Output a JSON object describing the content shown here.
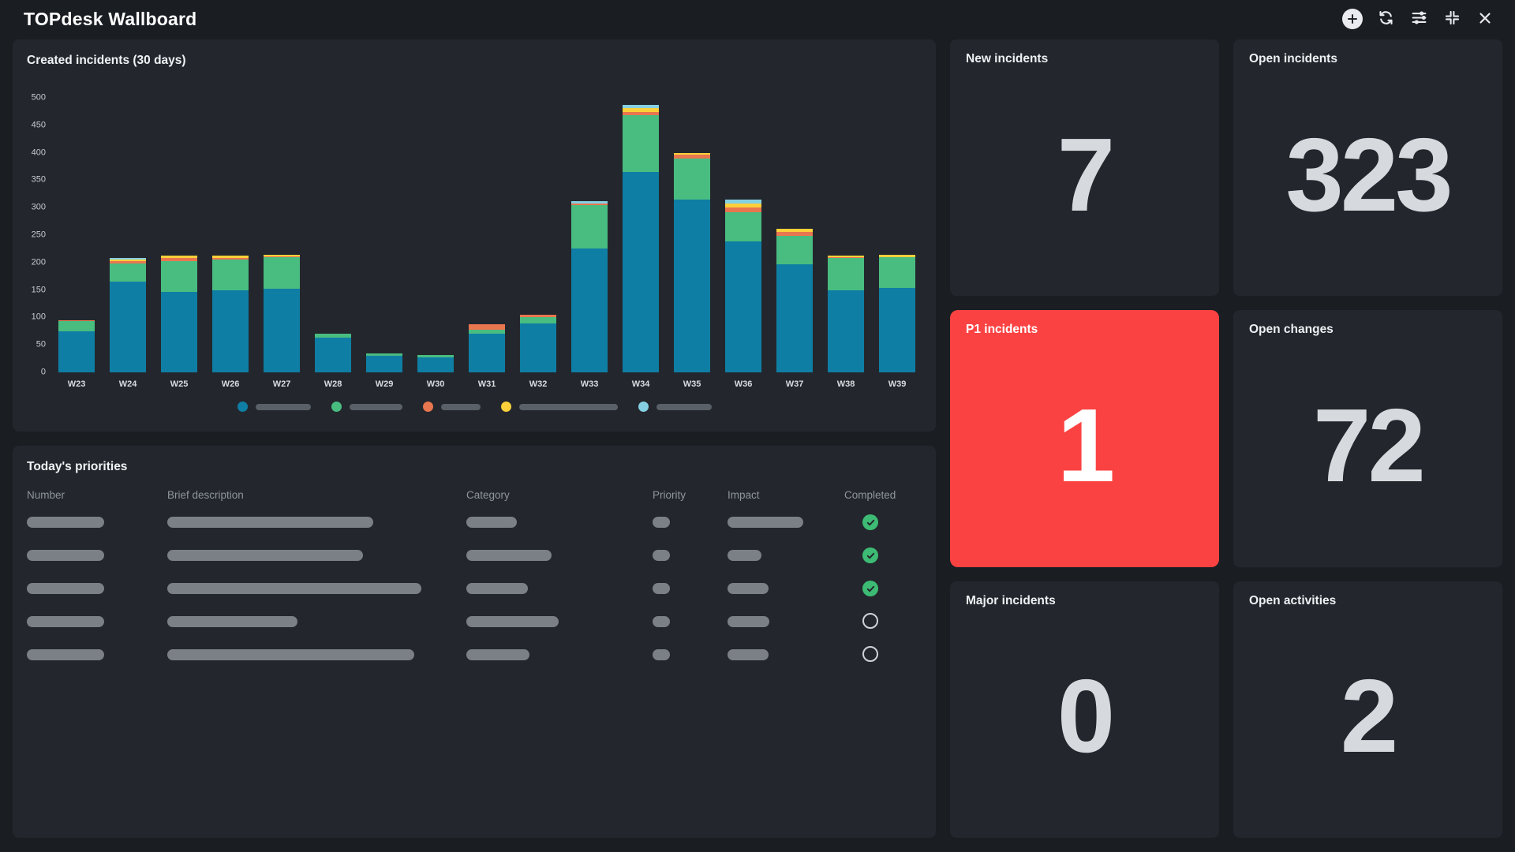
{
  "colors": {
    "page_bg": "#1a1d22",
    "panel_bg": "#23272d",
    "alert_red": "#fb4242",
    "big_number": "#d6dade",
    "placeholder_gray": "#7b8086",
    "legend_pill_gray": "#5a6067",
    "check_green": "#3dbb74",
    "series_teal": "#0f7ea4",
    "series_green": "#49bc80",
    "series_salmon": "#e8764f",
    "series_yellow": "#fcd03a",
    "series_lightblue": "#85d0e2"
  },
  "header": {
    "title": "TOPdesk Wallboard",
    "icons": [
      "add-icon",
      "refresh-icon",
      "sliders-icon",
      "exit-fullscreen-icon",
      "close-icon"
    ]
  },
  "chart_panel": {
    "title": "Created incidents (30 days)"
  },
  "chart_data": {
    "type": "bar",
    "stacked": true,
    "title": "Created incidents (30 days)",
    "xlabel": "",
    "ylabel": "",
    "ylim": [
      0,
      500
    ],
    "ytick_step": 50,
    "grid": false,
    "legend_position": "bottom-center",
    "categories": [
      "W23",
      "W24",
      "W25",
      "W26",
      "W27",
      "W28",
      "W29",
      "W30",
      "W31",
      "W32",
      "W33",
      "W34",
      "W35",
      "W36",
      "W37",
      "W38",
      "W39"
    ],
    "series": [
      {
        "name": "series-teal",
        "color": "#0f7ea4",
        "values": [
          75,
          165,
          146,
          150,
          153,
          64,
          30,
          27,
          70,
          89,
          226,
          365,
          315,
          238,
          197,
          150,
          154
        ]
      },
      {
        "name": "series-green",
        "color": "#49bc80",
        "values": [
          18,
          33,
          57,
          56,
          57,
          7,
          4,
          4,
          8,
          12,
          79,
          103,
          75,
          54,
          52,
          58,
          56
        ]
      },
      {
        "name": "series-salmon",
        "color": "#e8764f",
        "values": [
          2,
          4,
          5,
          3,
          1,
          0,
          0,
          0,
          9,
          4,
          3,
          6,
          6,
          8,
          7,
          2,
          0
        ]
      },
      {
        "name": "series-yellow",
        "color": "#fcd03a",
        "values": [
          0,
          3,
          4,
          3,
          3,
          0,
          0,
          0,
          0,
          0,
          0,
          7,
          4,
          7,
          5,
          2,
          4
        ]
      },
      {
        "name": "series-lightblue",
        "color": "#85d0e2",
        "values": [
          0,
          3,
          0,
          0,
          0,
          0,
          0,
          0,
          0,
          0,
          4,
          6,
          0,
          8,
          0,
          0,
          0
        ]
      }
    ],
    "legend_items": [
      {
        "series": "series-teal",
        "color": "#0f7ea4",
        "label_redacted": true,
        "pill_width": 70
      },
      {
        "series": "series-green",
        "color": "#49bc80",
        "label_redacted": true,
        "pill_width": 67
      },
      {
        "series": "series-salmon",
        "color": "#e8764f",
        "label_redacted": true,
        "pill_width": 50
      },
      {
        "series": "series-yellow",
        "color": "#fcd03a",
        "label_redacted": true,
        "pill_width": 125
      },
      {
        "series": "series-lightblue",
        "color": "#85d0e2",
        "label_redacted": true,
        "pill_width": 70
      }
    ]
  },
  "priorities": {
    "title": "Today's priorities",
    "columns": [
      "Number",
      "Brief description",
      "Category",
      "Priority",
      "Impact",
      "Completed"
    ],
    "rows": [
      {
        "number_w": 98,
        "brief_w": 261,
        "category_w": 64,
        "priority_w": 22,
        "impact_w": 96,
        "completed": true
      },
      {
        "number_w": 98,
        "brief_w": 248,
        "category_w": 108,
        "priority_w": 22,
        "impact_w": 43,
        "completed": true
      },
      {
        "number_w": 98,
        "brief_w": 322,
        "category_w": 78,
        "priority_w": 22,
        "impact_w": 52,
        "completed": true
      },
      {
        "number_w": 98,
        "brief_w": 165,
        "category_w": 117,
        "priority_w": 22,
        "impact_w": 53,
        "completed": false
      },
      {
        "number_w": 98,
        "brief_w": 313,
        "category_w": 80,
        "priority_w": 22,
        "impact_w": 52,
        "completed": false
      }
    ]
  },
  "tiles": [
    {
      "title": "New incidents",
      "value": "7",
      "variant": "default"
    },
    {
      "title": "Open incidents",
      "value": "323",
      "variant": "default"
    },
    {
      "title": "P1 incidents",
      "value": "1",
      "variant": "alert"
    },
    {
      "title": "Open changes",
      "value": "72",
      "variant": "default"
    },
    {
      "title": "Major incidents",
      "value": "0",
      "variant": "default"
    },
    {
      "title": "Open activities",
      "value": "2",
      "variant": "default"
    }
  ]
}
